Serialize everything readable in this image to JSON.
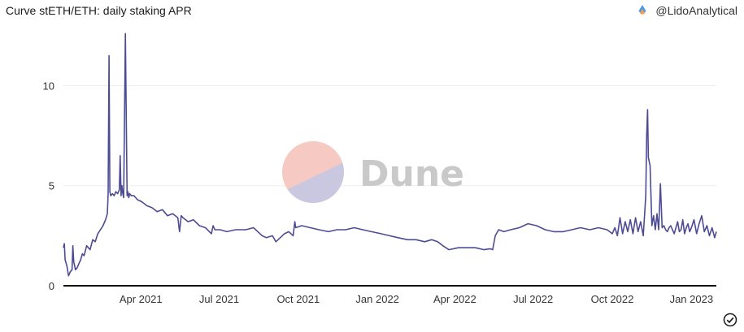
{
  "title": "Curve stETH/ETH: daily staking APR",
  "author": "@LidoAnalytical",
  "watermark": "Dune",
  "colors": {
    "line": "#4d4b93",
    "grid": "#eeeeee",
    "axis": "#000000",
    "wm_top": "#f6c9c2",
    "wm_bottom": "#c9c8e0"
  },
  "icons": {
    "author_logo": "lido-drop-icon",
    "status": "check-circle-icon"
  },
  "chart_data": {
    "type": "line",
    "title": "Curve stETH/ETH: daily staking APR",
    "xlabel": "",
    "ylabel": "",
    "xlim": [
      "2021-01-01",
      "2023-01-30"
    ],
    "ylim": [
      0,
      12.9
    ],
    "yticks": [
      0,
      5,
      10
    ],
    "ytick_labels": [
      "0",
      "5",
      "10"
    ],
    "xticks": [
      "2021-04-01",
      "2021-07-01",
      "2021-10-01",
      "2022-01-01",
      "2022-04-01",
      "2022-07-01",
      "2022-10-01",
      "2023-01-01"
    ],
    "xtick_labels": [
      "Apr 2021",
      "Jul 2021",
      "Oct 2021",
      "Jan 2022",
      "Apr 2022",
      "Jul 2022",
      "Oct 2022",
      "Jan 2023"
    ],
    "grid": true,
    "series": [
      {
        "x": [
          "2021-01-01",
          "2021-01-02",
          "2021-01-03",
          "2021-01-05",
          "2021-01-07",
          "2021-01-09",
          "2021-01-11",
          "2021-01-12",
          "2021-01-13",
          "2021-01-15",
          "2021-01-17",
          "2021-01-19",
          "2021-01-21",
          "2021-01-23",
          "2021-01-25",
          "2021-01-28",
          "2021-02-01",
          "2021-02-04",
          "2021-02-07",
          "2021-02-10",
          "2021-02-13",
          "2021-02-16",
          "2021-02-19",
          "2021-02-21",
          "2021-02-22",
          "2021-02-23",
          "2021-02-24",
          "2021-02-25",
          "2021-02-27",
          "2021-03-01",
          "2021-03-03",
          "2021-03-05",
          "2021-03-07",
          "2021-03-08",
          "2021-03-09",
          "2021-03-10",
          "2021-03-11",
          "2021-03-12",
          "2021-03-14",
          "2021-03-16",
          "2021-03-17",
          "2021-03-18",
          "2021-03-19",
          "2021-03-21",
          "2021-03-24",
          "2021-03-28",
          "2021-04-02",
          "2021-04-08",
          "2021-04-14",
          "2021-04-20",
          "2021-04-26",
          "2021-05-02",
          "2021-05-08",
          "2021-05-14",
          "2021-05-16",
          "2021-05-18",
          "2021-05-20",
          "2021-05-26",
          "2021-06-01",
          "2021-06-08",
          "2021-06-15",
          "2021-06-22",
          "2021-06-24",
          "2021-06-26",
          "2021-07-02",
          "2021-07-10",
          "2021-07-20",
          "2021-08-01",
          "2021-08-10",
          "2021-08-15",
          "2021-08-20",
          "2021-08-25",
          "2021-09-01",
          "2021-09-05",
          "2021-09-10",
          "2021-09-15",
          "2021-09-20",
          "2021-09-25",
          "2021-09-27",
          "2021-09-28",
          "2021-10-05",
          "2021-10-15",
          "2021-10-25",
          "2021-11-05",
          "2021-11-15",
          "2021-11-25",
          "2021-12-05",
          "2021-12-15",
          "2021-12-25",
          "2022-01-05",
          "2022-01-15",
          "2022-01-25",
          "2022-02-05",
          "2022-02-15",
          "2022-02-25",
          "2022-03-05",
          "2022-03-12",
          "2022-03-15",
          "2022-03-18",
          "2022-03-25",
          "2022-04-05",
          "2022-04-15",
          "2022-04-25",
          "2022-05-05",
          "2022-05-12",
          "2022-05-15",
          "2022-05-18",
          "2022-05-22",
          "2022-05-28",
          "2022-06-05",
          "2022-06-15",
          "2022-06-25",
          "2022-07-05",
          "2022-07-15",
          "2022-07-25",
          "2022-08-05",
          "2022-08-15",
          "2022-08-25",
          "2022-09-05",
          "2022-09-15",
          "2022-09-25",
          "2022-10-01",
          "2022-10-04",
          "2022-10-07",
          "2022-10-10",
          "2022-10-13",
          "2022-10-16",
          "2022-10-19",
          "2022-10-22",
          "2022-10-25",
          "2022-10-28",
          "2022-10-31",
          "2022-11-03",
          "2022-11-06",
          "2022-11-09",
          "2022-11-10",
          "2022-11-11",
          "2022-11-12",
          "2022-11-14",
          "2022-11-16",
          "2022-11-18",
          "2022-11-20",
          "2022-11-22",
          "2022-11-24",
          "2022-11-26",
          "2022-11-28",
          "2022-11-30",
          "2022-12-02",
          "2022-12-04",
          "2022-12-06",
          "2022-12-08",
          "2022-12-10",
          "2022-12-12",
          "2022-12-14",
          "2022-12-16",
          "2022-12-18",
          "2022-12-20",
          "2022-12-22",
          "2022-12-24",
          "2022-12-26",
          "2022-12-28",
          "2022-12-30",
          "2023-01-01",
          "2023-01-04",
          "2023-01-07",
          "2023-01-10",
          "2023-01-13",
          "2023-01-16",
          "2023-01-19",
          "2023-01-22",
          "2023-01-25",
          "2023-01-28",
          "2023-01-30"
        ],
        "values": [
          1.9,
          2.1,
          1.3,
          1.0,
          0.5,
          0.7,
          0.8,
          2.0,
          1.2,
          0.8,
          0.9,
          1.1,
          1.3,
          1.6,
          1.5,
          2.0,
          1.8,
          2.3,
          2.2,
          2.6,
          2.8,
          3.0,
          3.3,
          3.6,
          4.6,
          11.5,
          4.7,
          4.5,
          4.6,
          4.5,
          4.7,
          4.6,
          4.8,
          6.5,
          4.5,
          5.0,
          4.6,
          4.4,
          12.6,
          4.5,
          4.7,
          4.4,
          4.6,
          4.5,
          4.5,
          4.3,
          4.2,
          4.0,
          3.9,
          3.7,
          3.8,
          3.5,
          3.6,
          3.4,
          2.7,
          3.5,
          3.4,
          3.2,
          3.3,
          3.0,
          2.9,
          2.6,
          3.0,
          2.8,
          2.8,
          2.7,
          2.8,
          2.8,
          2.9,
          2.7,
          2.5,
          2.4,
          2.5,
          2.2,
          2.4,
          2.6,
          2.7,
          2.5,
          3.2,
          2.9,
          3.0,
          2.9,
          2.8,
          2.7,
          2.8,
          2.8,
          2.9,
          2.8,
          2.7,
          2.6,
          2.5,
          2.4,
          2.3,
          2.3,
          2.2,
          2.3,
          2.2,
          2.1,
          2.0,
          1.8,
          1.9,
          1.9,
          1.9,
          1.8,
          1.85,
          1.8,
          2.5,
          2.8,
          2.7,
          2.8,
          2.9,
          3.1,
          3.0,
          2.8,
          2.7,
          2.7,
          2.8,
          2.9,
          2.8,
          2.9,
          2.8,
          2.6,
          2.9,
          2.5,
          3.4,
          2.6,
          3.2,
          2.7,
          3.3,
          2.6,
          3.4,
          2.7,
          3.2,
          2.5,
          4.5,
          7.5,
          8.8,
          6.4,
          6.0,
          3.0,
          3.5,
          2.8,
          3.6,
          2.8,
          5.1,
          2.9,
          3.0,
          2.8,
          2.7,
          2.9,
          3.0,
          2.8,
          2.6,
          2.9,
          3.2,
          2.7,
          2.8,
          3.3,
          2.6,
          2.9,
          3.1,
          2.7,
          2.9,
          3.3,
          2.6,
          3.1,
          3.5,
          2.7,
          3.0,
          2.5,
          2.9,
          2.4,
          2.7
        ]
      }
    ]
  }
}
